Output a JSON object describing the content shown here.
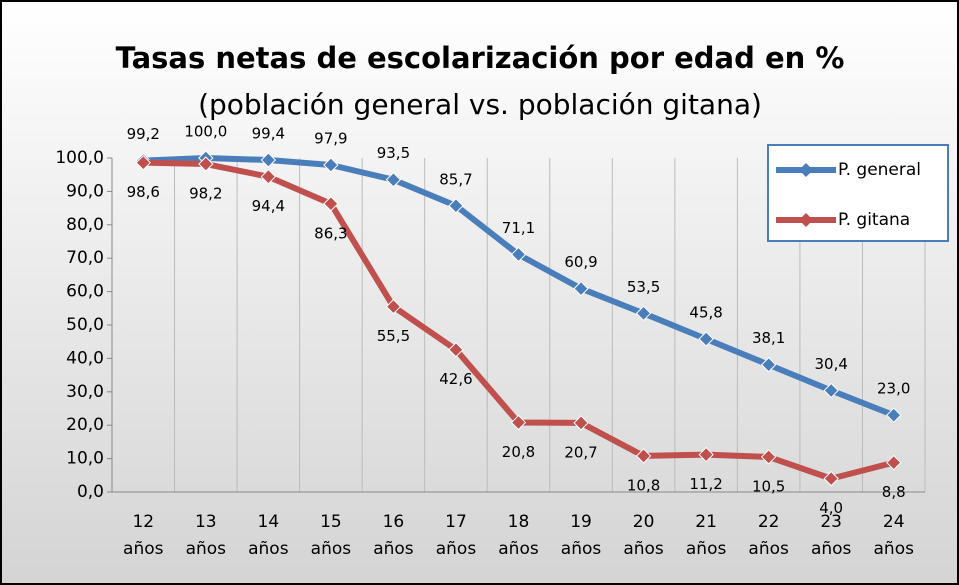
{
  "chart_data": {
    "type": "line",
    "title": "Tasas netas de escolarización por edad en %",
    "subtitle": "(población general vs. población gitana)",
    "categories": [
      "12 años",
      "13 años",
      "14 años",
      "15 años",
      "16 años",
      "17 años",
      "18 años",
      "19 años",
      "20 años",
      "21 años",
      "22 años",
      "23 años",
      "24 años"
    ],
    "series": [
      {
        "name": "P. general",
        "color": "#4a7ebb",
        "values": [
          99.2,
          100,
          99.4,
          97.9,
          93.5,
          85.7,
          71.1,
          60.9,
          53.5,
          45.8,
          38.1,
          30.4,
          23.0
        ],
        "value_labels": [
          "99,2",
          "100,0",
          "99,4",
          "97,9",
          "93,5",
          "85,7",
          "71,1",
          "60,9",
          "53,5",
          "45,8",
          "38,1",
          "30,4",
          "23,0"
        ]
      },
      {
        "name": "P. gitana",
        "color": "#c0504d",
        "values": [
          98.6,
          98.2,
          94.4,
          86.3,
          55.5,
          42.6,
          20.8,
          20.7,
          10.8,
          11.2,
          10.5,
          4.0,
          8.8
        ],
        "value_labels": [
          "98,6",
          "98,2",
          "94,4",
          "86,3",
          "55,5",
          "42,6",
          "20,8",
          "20,7",
          "10,8",
          "11,2",
          "10,5",
          "4,0",
          "8,8"
        ]
      }
    ],
    "ylim": [
      0,
      100
    ],
    "yticks": [
      {
        "value": 0,
        "label": "0,0"
      },
      {
        "value": 10,
        "label": "10,0"
      },
      {
        "value": 20,
        "label": "20,0"
      },
      {
        "value": 30,
        "label": "30,0"
      },
      {
        "value": 40,
        "label": "40,0"
      },
      {
        "value": 50,
        "label": "50,0"
      },
      {
        "value": 60,
        "label": "60,0"
      },
      {
        "value": 70,
        "label": "70,0"
      },
      {
        "value": 80,
        "label": "80,0"
      },
      {
        "value": 90,
        "label": "90,0"
      },
      {
        "value": 100,
        "label": "100,0"
      }
    ],
    "legend": "top-right"
  }
}
